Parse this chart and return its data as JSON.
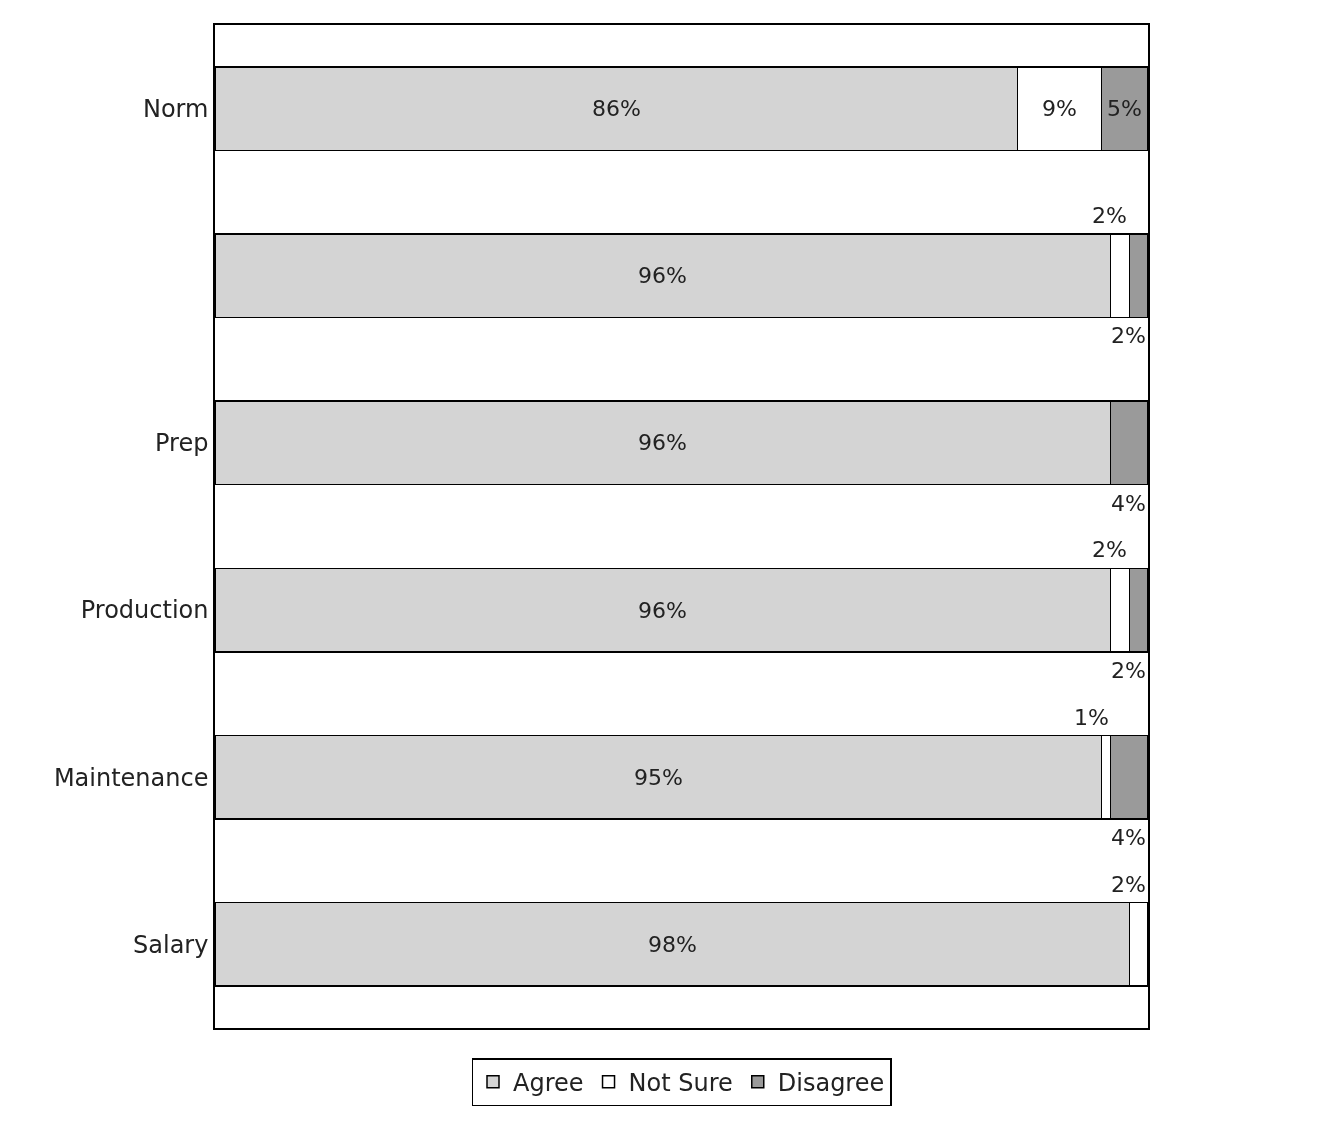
{
  "chart_data": {
    "type": "bar",
    "orientation": "horizontal",
    "stacked": true,
    "legend": "bottom",
    "grid": false,
    "categories": [
      "Norm",
      null,
      "Prep",
      "Production",
      "Maintenance",
      "Salary"
    ],
    "series": [
      {
        "name": "Agree",
        "color": "#d4d4d4",
        "values": [
          86,
          96,
          96,
          96,
          95,
          98
        ],
        "value_labels": [
          "86%",
          "96%",
          "96%",
          "96%",
          "95%",
          "98%"
        ]
      },
      {
        "name": "Not Sure",
        "color": "#ffffff",
        "values": [
          9,
          2,
          null,
          2,
          1,
          2
        ],
        "value_labels": [
          "9%",
          "2%",
          null,
          "2%",
          "1%",
          "2%"
        ]
      },
      {
        "name": "Disagree",
        "color": "#9a9a9a",
        "values": [
          5,
          2,
          4,
          2,
          4,
          null
        ],
        "value_labels": [
          "5%",
          "2%",
          "4%",
          "2%",
          "4%",
          null
        ]
      }
    ]
  }
}
